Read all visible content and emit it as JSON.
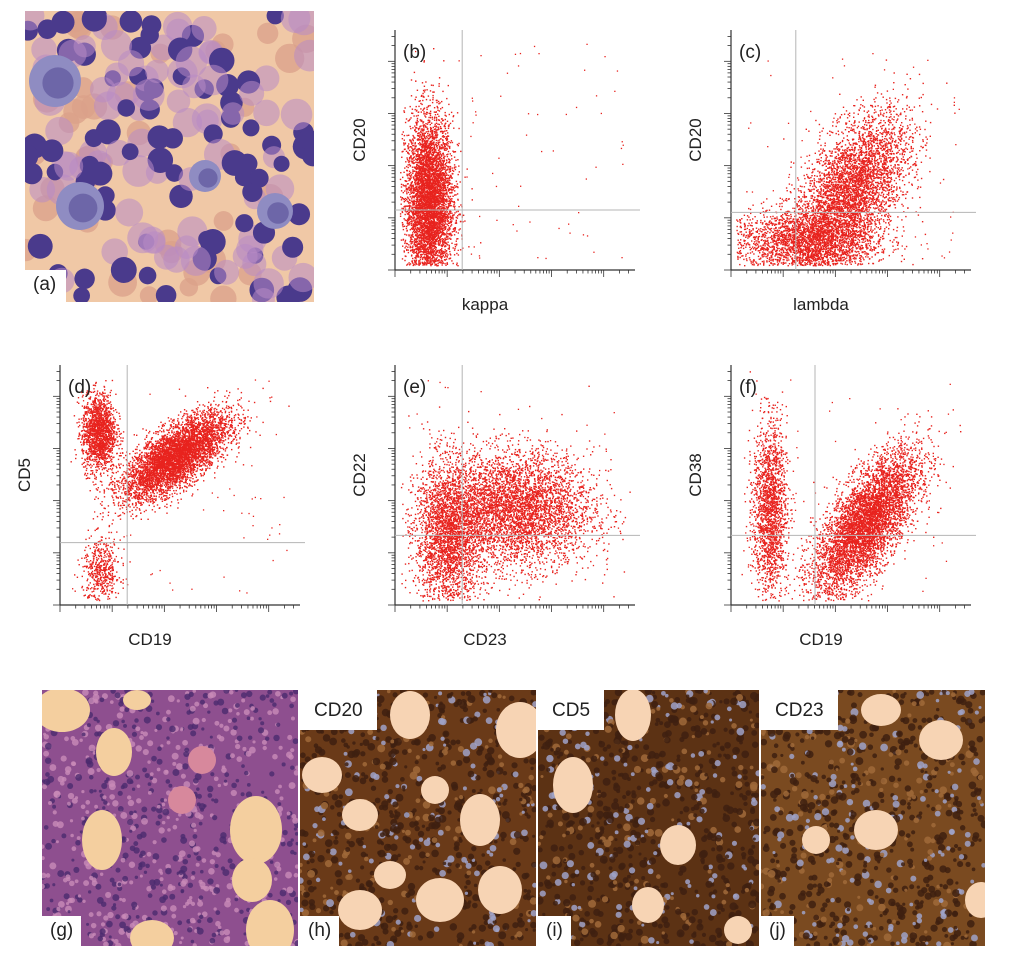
{
  "figure": {
    "panels": {
      "a": {
        "label": "(a)"
      },
      "g": {
        "label": "(g)"
      },
      "h": {
        "label": "(h)",
        "stain": "CD20"
      },
      "i": {
        "label": "(i)",
        "stain": "CD5"
      },
      "j": {
        "label": "(j)",
        "stain": "CD23"
      }
    }
  },
  "colors": {
    "dot": "#e8231e",
    "gate": "#b5b5b5",
    "axis": "#333333",
    "smear_bg": "#f0c8a6",
    "lymphocyte": "#4a3a8c",
    "he_bg": "#8e4f8f",
    "ihc_brown": "#6a3a18",
    "fat_vacuole": "#f7d4b4"
  },
  "chart_data": [
    {
      "id": "b",
      "type": "scatter",
      "label": "(b)",
      "xlabel": "kappa",
      "ylabel": "CD20",
      "xscale": "log",
      "yscale": "log",
      "quadrant_x": 0.28,
      "quadrant_y": 0.25,
      "populations": [
        {
          "name": "",
          "cx": 0.14,
          "cy": 0.28,
          "sx": 0.05,
          "sy": 0.18,
          "n": 5200
        }
      ]
    },
    {
      "id": "c",
      "type": "scatter",
      "label": "(c)",
      "xlabel": "lambda",
      "ylabel": "CD20",
      "xscale": "log",
      "yscale": "log",
      "quadrant_x": 0.27,
      "quadrant_y": 0.24,
      "populations": [
        {
          "name": "",
          "cx": 0.3,
          "cy": 0.12,
          "sx": 0.15,
          "sy": 0.07,
          "n": 2400
        },
        {
          "name": "",
          "cx": 0.5,
          "cy": 0.33,
          "sx": 0.12,
          "sy": 0.16,
          "n": 4200,
          "corr": 0.55
        }
      ]
    },
    {
      "id": "d",
      "type": "scatter",
      "label": "(d)",
      "xlabel": "CD19",
      "ylabel": "CD5",
      "xscale": "log",
      "yscale": "log",
      "quadrant_x": 0.28,
      "quadrant_y": 0.26,
      "populations": [
        {
          "name": "",
          "cx": 0.16,
          "cy": 0.72,
          "sx": 0.035,
          "sy": 0.08,
          "n": 1600
        },
        {
          "name": "",
          "cx": 0.48,
          "cy": 0.62,
          "sx": 0.11,
          "sy": 0.09,
          "n": 5000,
          "corr": 0.7
        },
        {
          "name": "",
          "cx": 0.17,
          "cy": 0.14,
          "sx": 0.04,
          "sy": 0.07,
          "n": 500
        }
      ]
    },
    {
      "id": "e",
      "type": "scatter",
      "label": "(e)",
      "xlabel": "CD23",
      "ylabel": "CD22",
      "xscale": "log",
      "yscale": "log",
      "quadrant_x": 0.28,
      "quadrant_y": 0.29,
      "populations": [
        {
          "name": "",
          "cx": 0.22,
          "cy": 0.28,
          "sx": 0.07,
          "sy": 0.16,
          "n": 2600
        },
        {
          "name": "",
          "cx": 0.5,
          "cy": 0.4,
          "sx": 0.16,
          "sy": 0.12,
          "n": 4400
        }
      ]
    },
    {
      "id": "f",
      "type": "scatter",
      "label": "(f)",
      "xlabel": "CD19",
      "ylabel": "CD38",
      "xscale": "log",
      "yscale": "log",
      "quadrant_x": 0.35,
      "quadrant_y": 0.29,
      "populations": [
        {
          "name": "",
          "cx": 0.16,
          "cy": 0.4,
          "sx": 0.035,
          "sy": 0.18,
          "n": 1800
        },
        {
          "name": "",
          "cx": 0.56,
          "cy": 0.34,
          "sx": 0.11,
          "sy": 0.15,
          "n": 5200,
          "corr": 0.7
        }
      ]
    }
  ]
}
